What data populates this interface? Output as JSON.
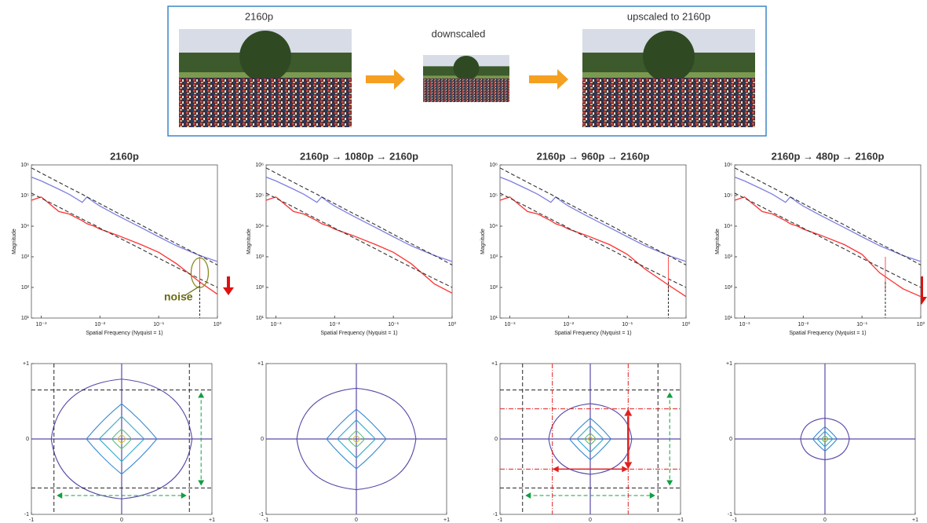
{
  "header": {
    "original": "2160p",
    "middle": "downscaled",
    "result": "upscaled to 2160p"
  },
  "chart_data": [
    {
      "type": "line",
      "log": true,
      "title": "2160p",
      "x_label": "Spatial Frequency (Nyquist = 1)",
      "y_label": "Magnitude",
      "annotation": "noise",
      "x": [
        0.00068,
        0.001,
        0.002,
        0.003,
        0.005,
        0.006,
        0.008,
        0.01,
        0.02,
        0.05,
        0.1,
        0.2,
        0.5,
        1
      ],
      "series": [
        {
          "color": "#7f7fe0",
          "values": [
            400000,
            300000,
            160000,
            110000,
            60000,
            90000,
            60000,
            45000,
            22000,
            9000,
            4500,
            2300,
            1100,
            700
          ]
        },
        {
          "color": "#ff3030",
          "values": [
            70000,
            90000,
            30000,
            25000,
            15000,
            12000,
            10000,
            8000,
            5000,
            2500,
            1400,
            600,
            150,
            60
          ]
        },
        {
          "color": "#333333",
          "dash": true,
          "values": [
            800000,
            540000,
            270000,
            180000,
            110000,
            90000,
            68000,
            54000,
            27000,
            11000,
            5400,
            2700,
            1100,
            540
          ]
        },
        {
          "color": "#333333",
          "dash": true,
          "values": [
            120000,
            82000,
            42000,
            28000,
            17000,
            14000,
            11000,
            8600,
            4400,
            1800,
            900,
            460,
            190,
            100
          ]
        }
      ],
      "vlines": [
        0.5
      ],
      "xlim": [
        0.00068,
        1
      ],
      "ylim": [
        10,
        1000000
      ],
      "xticks": [
        {
          "value": 0.001,
          "label": "10⁻³"
        },
        {
          "value": 0.01,
          "label": "10⁻²"
        },
        {
          "value": 0.1,
          "label": "10⁻¹"
        },
        {
          "value": 1,
          "label": "10⁰"
        }
      ],
      "yticks": [
        {
          "value": 10,
          "label": "10¹"
        },
        {
          "value": 100,
          "label": "10²"
        },
        {
          "value": 1000,
          "label": "10³"
        },
        {
          "value": 10000,
          "label": "10⁴"
        },
        {
          "value": 100000,
          "label": "10⁵"
        },
        {
          "value": 1000000,
          "label": "10⁶"
        }
      ]
    },
    {
      "type": "line",
      "log": true,
      "title": "2160p → 1080p → 2160p",
      "x_label": "Spatial Frequency (Nyquist = 1)",
      "y_label": "Magnitude",
      "x": [
        0.00068,
        0.001,
        0.002,
        0.003,
        0.005,
        0.006,
        0.008,
        0.01,
        0.02,
        0.05,
        0.1,
        0.2,
        0.5,
        1
      ],
      "series": [
        {
          "color": "#7f7fe0",
          "values": [
            400000,
            300000,
            160000,
            110000,
            60000,
            90000,
            60000,
            45000,
            22000,
            9000,
            4500,
            2300,
            1100,
            700
          ]
        },
        {
          "color": "#ff3030",
          "values": [
            70000,
            90000,
            30000,
            25000,
            15000,
            12000,
            10000,
            8000,
            5000,
            2500,
            1400,
            600,
            130,
            65
          ]
        },
        {
          "color": "#333333",
          "dash": true,
          "values": [
            800000,
            540000,
            270000,
            180000,
            110000,
            90000,
            68000,
            54000,
            27000,
            11000,
            5400,
            2700,
            1100,
            540
          ]
        },
        {
          "color": "#333333",
          "dash": true,
          "values": [
            120000,
            82000,
            42000,
            28000,
            17000,
            14000,
            11000,
            8600,
            4400,
            1800,
            900,
            460,
            190,
            100
          ]
        }
      ],
      "xlim": [
        0.00068,
        1
      ],
      "ylim": [
        10,
        1000000
      ],
      "xticks": [
        {
          "value": 0.001,
          "label": "10⁻³"
        },
        {
          "value": 0.01,
          "label": "10⁻²"
        },
        {
          "value": 0.1,
          "label": "10⁻¹"
        },
        {
          "value": 1,
          "label": "10⁰"
        }
      ],
      "yticks": [
        {
          "value": 10,
          "label": "10¹"
        },
        {
          "value": 100,
          "label": "10²"
        },
        {
          "value": 1000,
          "label": "10³"
        },
        {
          "value": 10000,
          "label": "10⁴"
        },
        {
          "value": 100000,
          "label": "10⁵"
        },
        {
          "value": 1000000,
          "label": "10⁶"
        }
      ]
    },
    {
      "type": "line",
      "log": true,
      "title": "2160p → 960p → 2160p",
      "x_label": "Spatial Frequency (Nyquist = 1)",
      "y_label": "Magnitude",
      "x": [
        0.00068,
        0.001,
        0.002,
        0.003,
        0.005,
        0.006,
        0.008,
        0.01,
        0.02,
        0.05,
        0.1,
        0.2,
        0.5,
        1
      ],
      "series": [
        {
          "color": "#7f7fe0",
          "values": [
            400000,
            300000,
            160000,
            110000,
            60000,
            90000,
            60000,
            45000,
            22000,
            9000,
            4500,
            2300,
            1100,
            700
          ]
        },
        {
          "color": "#ff3030",
          "values": [
            70000,
            90000,
            30000,
            25000,
            15000,
            12000,
            10000,
            8000,
            5000,
            2500,
            1200,
            400,
            120,
            50
          ]
        },
        {
          "color": "#333333",
          "dash": true,
          "values": [
            800000,
            540000,
            270000,
            180000,
            110000,
            90000,
            68000,
            54000,
            27000,
            11000,
            5400,
            2700,
            1100,
            540
          ]
        },
        {
          "color": "#333333",
          "dash": true,
          "values": [
            120000,
            82000,
            42000,
            28000,
            17000,
            14000,
            11000,
            8600,
            4400,
            1800,
            900,
            460,
            190,
            100
          ]
        }
      ],
      "vlines": [
        0.5
      ],
      "xlim": [
        0.00068,
        1
      ],
      "ylim": [
        10,
        1000000
      ],
      "xticks": [
        {
          "value": 0.001,
          "label": "10⁻³"
        },
        {
          "value": 0.01,
          "label": "10⁻²"
        },
        {
          "value": 0.1,
          "label": "10⁻¹"
        },
        {
          "value": 1,
          "label": "10⁰"
        }
      ],
      "yticks": [
        {
          "value": 10,
          "label": "10¹"
        },
        {
          "value": 100,
          "label": "10²"
        },
        {
          "value": 1000,
          "label": "10³"
        },
        {
          "value": 10000,
          "label": "10⁴"
        },
        {
          "value": 100000,
          "label": "10⁵"
        },
        {
          "value": 1000000,
          "label": "10⁶"
        }
      ]
    },
    {
      "type": "line",
      "log": true,
      "title": "2160p → 480p → 2160p",
      "x_label": "Spatial Frequency (Nyquist = 1)",
      "y_label": "Magnitude",
      "x": [
        0.00068,
        0.001,
        0.002,
        0.003,
        0.005,
        0.006,
        0.008,
        0.01,
        0.02,
        0.05,
        0.1,
        0.2,
        0.5,
        1
      ],
      "series": [
        {
          "color": "#7f7fe0",
          "values": [
            400000,
            300000,
            160000,
            110000,
            60000,
            90000,
            60000,
            45000,
            22000,
            9000,
            4500,
            2300,
            1100,
            700
          ]
        },
        {
          "color": "#ff3030",
          "values": [
            70000,
            90000,
            30000,
            25000,
            15000,
            12000,
            10000,
            8000,
            5000,
            2500,
            1200,
            300,
            90,
            50
          ]
        },
        {
          "color": "#333333",
          "dash": true,
          "values": [
            800000,
            540000,
            270000,
            180000,
            110000,
            90000,
            68000,
            54000,
            27000,
            11000,
            5400,
            2700,
            1100,
            540
          ]
        },
        {
          "color": "#333333",
          "dash": true,
          "values": [
            120000,
            82000,
            42000,
            28000,
            17000,
            14000,
            11000,
            8600,
            4400,
            1800,
            900,
            460,
            190,
            100
          ]
        }
      ],
      "vlines": [
        0.25
      ],
      "xlim": [
        0.00068,
        1
      ],
      "ylim": [
        10,
        1000000
      ],
      "xticks": [
        {
          "value": 0.001,
          "label": "10⁻³"
        },
        {
          "value": 0.01,
          "label": "10⁻²"
        },
        {
          "value": 0.1,
          "label": "10⁻¹"
        },
        {
          "value": 1,
          "label": "10⁰"
        }
      ],
      "yticks": [
        {
          "value": 10,
          "label": "10¹"
        },
        {
          "value": 100,
          "label": "10²"
        },
        {
          "value": 1000,
          "label": "10³"
        },
        {
          "value": 10000,
          "label": "10⁴"
        },
        {
          "value": 100000,
          "label": "10⁵"
        },
        {
          "value": 1000000,
          "label": "10⁶"
        }
      ]
    },
    {
      "type": "contour",
      "xlim": [
        -1,
        1
      ],
      "ylim": [
        -1,
        1
      ],
      "xticks": [
        -1,
        0,
        {
          "value": 1,
          "label": "+1"
        }
      ],
      "yticks": [
        -1,
        0,
        {
          "value": 1,
          "label": "+1"
        }
      ]
    },
    {
      "type": "contour",
      "xlim": [
        -1,
        1
      ],
      "ylim": [
        -1,
        1
      ],
      "xticks": [
        -1,
        0,
        {
          "value": 1,
          "label": "+1"
        }
      ],
      "yticks": [
        -1,
        0,
        {
          "value": 1,
          "label": "+1"
        }
      ]
    },
    {
      "type": "contour",
      "xlim": [
        -1,
        1
      ],
      "ylim": [
        -1,
        1
      ],
      "xticks": [
        -1,
        0,
        {
          "value": 1,
          "label": "+1"
        }
      ],
      "yticks": [
        -1,
        0,
        {
          "value": 1,
          "label": "+1"
        }
      ]
    },
    {
      "type": "contour",
      "xlim": [
        -1,
        1
      ],
      "ylim": [
        -1,
        1
      ],
      "xticks": [
        -1,
        0,
        {
          "value": 1,
          "label": "+1"
        }
      ],
      "yticks": [
        -1,
        0,
        {
          "value": 1,
          "label": "+1"
        }
      ]
    }
  ]
}
